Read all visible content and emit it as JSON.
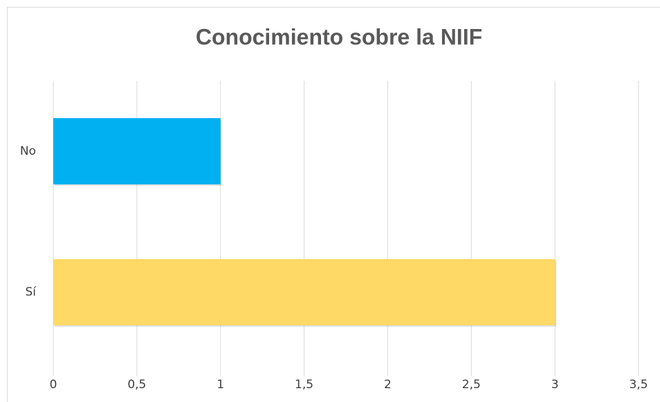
{
  "chart_data": {
    "type": "bar",
    "orientation": "horizontal",
    "title": "Conocimiento sobre la NIIF",
    "categories": [
      "No",
      "Sí"
    ],
    "values": [
      1,
      3
    ],
    "colors": [
      "#00b0f0",
      "#ffd966"
    ],
    "xlim": [
      0,
      3.5
    ],
    "xticks": [
      0,
      {
        "value": 0.5,
        "label": "0,5"
      },
      1,
      {
        "value": 1.5,
        "label": "1,5"
      },
      2,
      {
        "value": 2.5,
        "label": "2,5"
      },
      3,
      {
        "value": 3.5,
        "label": "3,5"
      }
    ],
    "grid": true
  }
}
